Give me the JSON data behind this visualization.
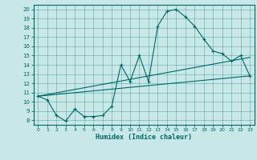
{
  "xlabel": "Humidex (Indice chaleur)",
  "bg_color": "#c8e8e8",
  "line_color": "#006666",
  "xlim": [
    -0.5,
    23.5
  ],
  "ylim": [
    7.5,
    20.5
  ],
  "xticks": [
    0,
    1,
    2,
    3,
    4,
    5,
    6,
    7,
    8,
    9,
    10,
    11,
    12,
    13,
    14,
    15,
    16,
    17,
    18,
    19,
    20,
    21,
    22,
    23
  ],
  "yticks": [
    8,
    9,
    10,
    11,
    12,
    13,
    14,
    15,
    16,
    17,
    18,
    19,
    20
  ],
  "line1_x": [
    0,
    1,
    2,
    3,
    4,
    5,
    6,
    7,
    8,
    9,
    10,
    11,
    12,
    13,
    14,
    15,
    16,
    17,
    18,
    19,
    20,
    21,
    22,
    23
  ],
  "line1_y": [
    10.6,
    10.2,
    8.5,
    7.9,
    9.2,
    8.4,
    8.4,
    8.5,
    9.5,
    14.0,
    12.2,
    15.0,
    12.2,
    18.2,
    19.8,
    20.0,
    19.2,
    18.2,
    16.8,
    15.5,
    15.2,
    14.4,
    15.0,
    12.8
  ],
  "line2_x": [
    0,
    23
  ],
  "line2_y": [
    10.6,
    12.8
  ],
  "line3_x": [
    0,
    23
  ],
  "line3_y": [
    10.6,
    14.8
  ]
}
